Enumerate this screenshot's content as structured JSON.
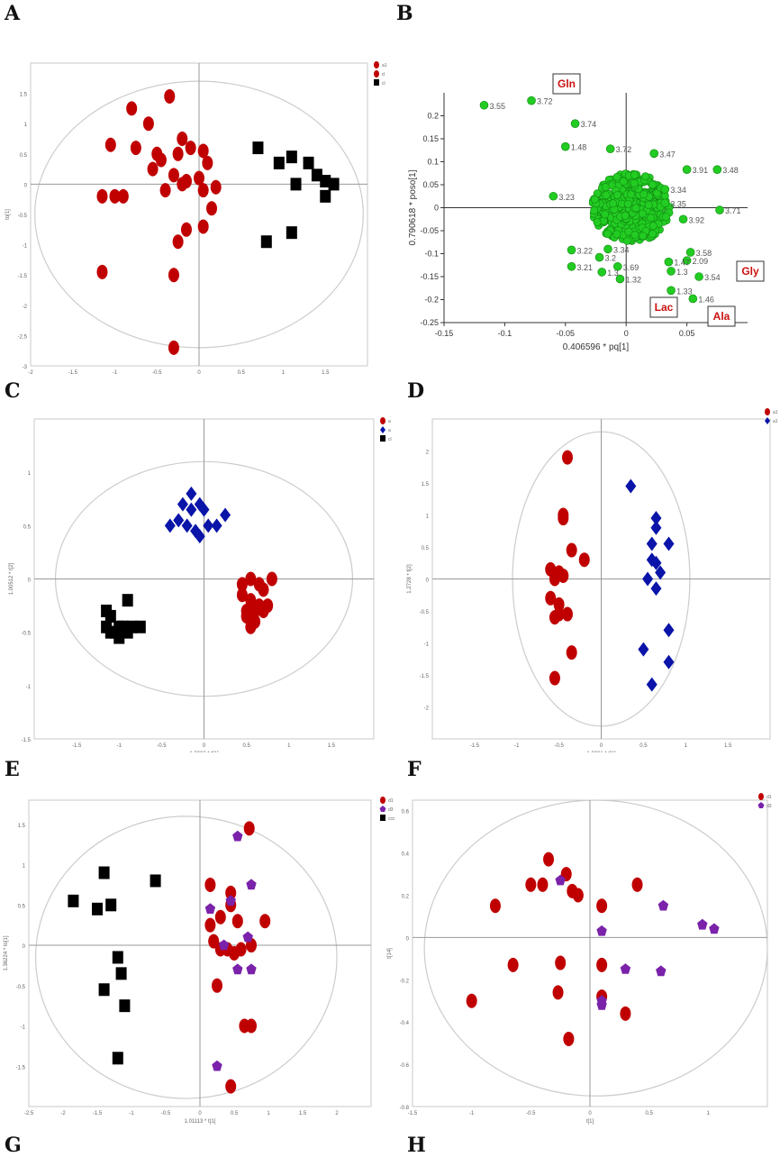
{
  "panel_labels": [
    "A",
    "B",
    "C",
    "D",
    "E",
    "F",
    "G",
    "H"
  ],
  "chart_data": [
    {
      "panel": "A",
      "type": "scatter",
      "title": "",
      "xlabel": "t[1]",
      "ylabel": "to[1]",
      "xlim": [
        -2,
        2
      ],
      "ylim": [
        -3,
        2
      ],
      "xticks": [
        "-2",
        "-1.5",
        "-1",
        "-0.5",
        "0",
        "0.5",
        "1",
        "1.5"
      ],
      "yticks": [
        "-3",
        "-2.5",
        "-2",
        "-1.5",
        "-1",
        "-0.5",
        "0",
        "0.5",
        "1",
        "1.5"
      ],
      "legend_position": "top-right",
      "ellipse": {
        "cx": 0,
        "cy": -0.5,
        "rx": 1.95,
        "ry": 2.2
      },
      "series": [
        {
          "name": "a1",
          "color": "#c00000",
          "marker": "circle",
          "x": [
            -0.35,
            -0.8,
            -0.6,
            -0.2,
            -1.05,
            -0.75,
            -0.5,
            -0.25,
            -0.45,
            -0.1,
            0.05,
            0.1,
            -0.55,
            -0.3,
            -0.15,
            0.0,
            -1.15,
            -1.0,
            -0.9,
            -0.4,
            -0.2,
            0.05,
            0.2,
            0.15,
            -0.15,
            -0.25,
            0.05,
            -1.15,
            -0.3,
            -0.3
          ],
          "y": [
            1.45,
            1.25,
            1.0,
            0.75,
            0.65,
            0.6,
            0.5,
            0.5,
            0.4,
            0.6,
            0.55,
            0.35,
            0.25,
            0.15,
            0.05,
            0.1,
            -0.2,
            -0.2,
            -0.2,
            -0.1,
            0.0,
            -0.1,
            -0.05,
            -0.4,
            -0.75,
            -0.95,
            -0.7,
            -1.45,
            -1.5,
            -2.7
          ]
        },
        {
          "name": "d",
          "color": "#c00000",
          "marker": "circle",
          "x": [],
          "y": []
        },
        {
          "name": "cl",
          "color": "#000000",
          "marker": "square",
          "x": [
            0.7,
            0.95,
            1.1,
            1.3,
            1.4,
            1.5,
            1.6,
            1.15,
            1.5,
            0.8,
            1.1
          ],
          "y": [
            0.6,
            0.35,
            0.45,
            0.35,
            0.15,
            0.05,
            0.0,
            0.0,
            -0.2,
            -0.95,
            -0.8
          ]
        }
      ]
    },
    {
      "panel": "B",
      "type": "scatter",
      "title": "",
      "xlabel": "0.406596 * pq[1]",
      "ylabel": "0.790618 * poso[1]",
      "xlim": [
        -0.15,
        0.1
      ],
      "ylim": [
        -0.25,
        0.25
      ],
      "xticks": [
        "-0.15",
        "-0.1",
        "-0.05",
        "0",
        "0.05"
      ],
      "yticks": [
        "-0.25",
        "-0.2",
        "-0.15",
        "-0.1",
        "-0.05",
        "0",
        "0.05",
        "0.1",
        "0.15",
        "0.2"
      ],
      "color": "#22cc22",
      "labeled_points": [
        {
          "label": "3.55",
          "x": -0.117,
          "y": 0.223
        },
        {
          "label": "3.72",
          "x": -0.078,
          "y": 0.233
        },
        {
          "label": "3.74",
          "x": -0.042,
          "y": 0.183
        },
        {
          "label": "1.48",
          "x": -0.05,
          "y": 0.133
        },
        {
          "label": "3.72",
          "x": -0.013,
          "y": 0.128
        },
        {
          "label": "3.47",
          "x": 0.023,
          "y": 0.118
        },
        {
          "label": "3.91",
          "x": 0.05,
          "y": 0.083
        },
        {
          "label": "3.48",
          "x": 0.075,
          "y": 0.083
        },
        {
          "label": "3.34",
          "x": 0.032,
          "y": 0.04
        },
        {
          "label": "3.35",
          "x": 0.032,
          "y": 0.01
        },
        {
          "label": "3.23",
          "x": -0.06,
          "y": 0.025
        },
        {
          "label": "3.71",
          "x": 0.077,
          "y": -0.005
        },
        {
          "label": "3.92",
          "x": 0.047,
          "y": -0.025
        },
        {
          "label": "3.22",
          "x": -0.045,
          "y": -0.092
        },
        {
          "label": "3.34",
          "x": -0.015,
          "y": -0.09
        },
        {
          "label": "3.21",
          "x": -0.045,
          "y": -0.128
        },
        {
          "label": "3.2",
          "x": -0.022,
          "y": -0.108
        },
        {
          "label": "3.69",
          "x": -0.007,
          "y": -0.128
        },
        {
          "label": "1.3",
          "x": -0.02,
          "y": -0.14
        },
        {
          "label": "1.32",
          "x": -0.005,
          "y": -0.155
        },
        {
          "label": "1.3",
          "x": 0.037,
          "y": -0.138
        },
        {
          "label": "1.33",
          "x": 0.037,
          "y": -0.18
        },
        {
          "label": "3.54",
          "x": 0.06,
          "y": -0.15
        },
        {
          "label": "1.46",
          "x": 0.055,
          "y": -0.198
        },
        {
          "label": "3.58",
          "x": 0.053,
          "y": -0.097
        },
        {
          "label": "2.09",
          "x": 0.05,
          "y": -0.115
        },
        {
          "label": "1.47",
          "x": 0.035,
          "y": -0.118
        }
      ],
      "annotations": [
        "Gln",
        "Gly",
        "Lac",
        "Ala"
      ]
    },
    {
      "panel": "C",
      "type": "scatter",
      "title": "",
      "xlabel": "1.0003 * t[1]",
      "ylabel": "1.00512 * t[2]",
      "xlim": [
        -2,
        2
      ],
      "ylim": [
        -1.5,
        1.5
      ],
      "xticks": [
        "-1.5",
        "-1",
        "-0.5",
        "0",
        "0.5",
        "1",
        "1.5"
      ],
      "yticks": [
        "-1.5",
        "-1",
        "-0.5",
        "0",
        "0.5",
        "1"
      ],
      "legend_position": "top-right",
      "ellipse": {
        "cx": 0,
        "cy": 0,
        "rx": 1.75,
        "ry": 1.1
      },
      "series": [
        {
          "name": "a",
          "color": "#c00000",
          "marker": "circle",
          "x": [
            0.55,
            0.65,
            0.8,
            0.45,
            0.55,
            0.7,
            0.75,
            0.5,
            0.6,
            0.65,
            0.5,
            0.55,
            0.7,
            0.45,
            0.6
          ],
          "y": [
            0.0,
            -0.05,
            0.0,
            -0.15,
            -0.2,
            -0.1,
            -0.25,
            -0.3,
            -0.3,
            -0.25,
            -0.35,
            -0.45,
            -0.3,
            -0.05,
            -0.4
          ]
        },
        {
          "name": "a",
          "color": "#0a14a8",
          "marker": "diamond",
          "x": [
            -0.15,
            -0.05,
            -0.25,
            -0.15,
            0.0,
            0.25,
            -0.4,
            -0.3,
            -0.2,
            -0.1,
            0.05,
            -0.05,
            0.15
          ],
          "y": [
            0.8,
            0.7,
            0.7,
            0.65,
            0.65,
            0.6,
            0.5,
            0.55,
            0.5,
            0.45,
            0.5,
            0.4,
            0.5
          ]
        },
        {
          "name": "cl",
          "color": "#000000",
          "marker": "square",
          "x": [
            -0.9,
            -1.15,
            -1.1,
            -1.15,
            -0.95,
            -0.85,
            -0.75,
            -1.05,
            -1.0,
            -0.9,
            -1.1,
            -1.0
          ],
          "y": [
            -0.2,
            -0.3,
            -0.35,
            -0.45,
            -0.45,
            -0.45,
            -0.45,
            -0.5,
            -0.45,
            -0.5,
            -0.5,
            -0.55
          ]
        }
      ]
    },
    {
      "panel": "D",
      "type": "scatter",
      "title": "",
      "xlabel": "1.0081 * t[1]",
      "ylabel": "1.2728 * t[2]",
      "xlim": [
        -2,
        2
      ],
      "ylim": [
        -2.5,
        2.5
      ],
      "xticks": [
        "-1.5",
        "-1",
        "-0.5",
        "0",
        "0.5",
        "1",
        "1.5"
      ],
      "yticks": [
        "-2",
        "-1.5",
        "-1",
        "-0.5",
        "0",
        "0.5",
        "1",
        "1.5",
        "2"
      ],
      "legend_position": "top-right",
      "ellipse": {
        "cx": 0,
        "cy": 0,
        "rx": 1.05,
        "ry": 2.3
      },
      "series": [
        {
          "name": "a1",
          "color": "#c00000",
          "marker": "circle",
          "x": [
            -0.4,
            -0.45,
            -0.45,
            -0.35,
            -0.2,
            -0.6,
            -0.55,
            -0.5,
            -0.45,
            -0.6,
            -0.5,
            -0.55,
            -0.5,
            -0.4,
            -0.35,
            -0.55
          ],
          "y": [
            1.9,
            1.0,
            0.95,
            0.45,
            0.3,
            0.15,
            0.0,
            0.1,
            0.05,
            -0.3,
            -0.4,
            -0.6,
            -0.55,
            -0.55,
            -1.15,
            -1.55
          ]
        },
        {
          "name": "a1",
          "color": "#0a14a8",
          "marker": "diamond",
          "x": [
            0.35,
            0.65,
            0.65,
            0.6,
            0.8,
            0.6,
            0.65,
            0.7,
            0.55,
            0.65,
            0.8,
            0.5,
            0.8,
            0.6
          ],
          "y": [
            1.45,
            0.95,
            0.8,
            0.55,
            0.55,
            0.3,
            0.25,
            0.1,
            0.0,
            -0.15,
            -0.8,
            -1.1,
            -1.3,
            -1.65
          ]
        }
      ]
    },
    {
      "panel": "E",
      "type": "scatter",
      "title": "",
      "xlabel": "1.01113 * t[1]",
      "ylabel": "1.36224 * to[1]",
      "xlim": [
        -2.5,
        2.5
      ],
      "ylim": [
        -2,
        1.8
      ],
      "xticks": [
        "-2.5",
        "-2",
        "-1.5",
        "-1",
        "-0.5",
        "0",
        "0.5",
        "1",
        "1.5",
        "2"
      ],
      "yticks": [
        "-1.5",
        "-1",
        "-0.5",
        "0",
        "0.5",
        "1",
        "1.5"
      ],
      "legend_position": "top-right",
      "ellipse": {
        "cx": -0.2,
        "cy": -0.15,
        "rx": 2.2,
        "ry": 1.75
      },
      "series": [
        {
          "name": "d1",
          "color": "#c00000",
          "marker": "circle",
          "x": [
            0.72,
            0.15,
            0.45,
            0.45,
            0.3,
            0.15,
            0.55,
            0.95,
            0.2,
            0.3,
            0.4,
            0.5,
            0.6,
            0.75,
            0.25,
            0.65,
            0.75,
            0.45
          ],
          "y": [
            1.45,
            0.75,
            0.65,
            0.5,
            0.35,
            0.25,
            0.3,
            0.3,
            0.05,
            -0.05,
            -0.05,
            -0.1,
            -0.05,
            0.0,
            -0.5,
            -1.0,
            -1.0,
            -1.75
          ]
        },
        {
          "name": "d3",
          "color": "#7a22aa",
          "marker": "pentagon",
          "x": [
            0.55,
            0.75,
            0.45,
            0.15,
            0.7,
            0.35,
            0.55,
            0.75,
            0.25
          ],
          "y": [
            1.35,
            0.75,
            0.55,
            0.45,
            0.1,
            0.0,
            -0.3,
            -0.3,
            -1.5
          ]
        },
        {
          "name": "ccc",
          "color": "#000000",
          "marker": "square",
          "x": [
            -1.4,
            -0.65,
            -1.85,
            -1.5,
            -1.3,
            -1.2,
            -1.15,
            -1.4,
            -1.1,
            -1.2
          ],
          "y": [
            0.9,
            0.8,
            0.55,
            0.45,
            0.5,
            -0.15,
            -0.35,
            -0.55,
            -0.75,
            -1.4
          ]
        }
      ]
    },
    {
      "panel": "F",
      "type": "scatter",
      "title": "",
      "xlabel": "t[1]",
      "ylabel": "t[14]",
      "xlim": [
        -1.5,
        1.5
      ],
      "ylim": [
        -0.8,
        0.65
      ],
      "xticks": [
        "-1.5",
        "-1",
        "-0.5",
        "0",
        "0.5",
        "1"
      ],
      "yticks": [
        "-0.8",
        "-0.6",
        "-0.4",
        "-0.2",
        "0",
        "0.2",
        "0.4",
        "0.6"
      ],
      "legend_position": "top-right",
      "ellipse": {
        "cx": 0.05,
        "cy": -0.05,
        "rx": 1.45,
        "ry": 0.7
      },
      "series": [
        {
          "name": "d1",
          "color": "#c00000",
          "marker": "circle",
          "x": [
            -0.35,
            -0.2,
            -0.5,
            -0.4,
            -0.1,
            -0.15,
            -0.8,
            0.1,
            0.4,
            -0.65,
            -0.25,
            0.1,
            -1.0,
            -0.27,
            0.1,
            0.3,
            -0.18
          ],
          "y": [
            0.37,
            0.3,
            0.25,
            0.25,
            0.2,
            0.22,
            0.15,
            0.15,
            0.25,
            -0.13,
            -0.12,
            -0.13,
            -0.3,
            -0.26,
            -0.28,
            -0.36,
            -0.48
          ]
        },
        {
          "name": "d3",
          "color": "#7a22aa",
          "marker": "pentagon",
          "x": [
            -0.25,
            0.62,
            0.95,
            1.05,
            0.1,
            0.3,
            0.6,
            0.1,
            0.1
          ],
          "y": [
            0.27,
            0.15,
            0.06,
            0.04,
            0.03,
            -0.15,
            -0.16,
            -0.3,
            -0.32
          ]
        }
      ]
    }
  ]
}
